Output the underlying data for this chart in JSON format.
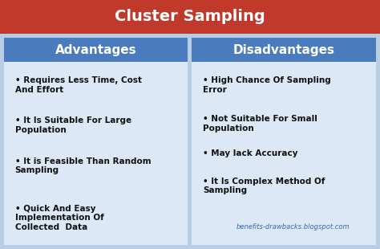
{
  "title": "Cluster Sampling",
  "title_bg_color": "#c0392b",
  "title_text_color": "#ffffff",
  "title_fontsize": 14,
  "header_bg_color": "#4a7bbf",
  "header_text_color": "#ffffff",
  "header_fontsize": 11,
  "body_bg_color": "#dce8f5",
  "body_text_color": "#111111",
  "outer_bg_color": "#b8cce4",
  "divider_color": "#b8cce4",
  "left_header": "Advantages",
  "right_header": "Disadvantages",
  "advantages": [
    "Requires Less Time, Cost\nAnd Effort",
    "It Is Suitable For Large\nPopulation",
    "It is Feasible Than Random\nSampling",
    "Quick And Easy\nImplementation Of\nCollected  Data"
  ],
  "disadvantages": [
    "High Chance Of Sampling\nError",
    "Not Suitable For Small\nPopulation",
    "May lack Accuracy",
    "It Is Complex Method Of\nSampling"
  ],
  "watermark": "benefits-drawbacks.blogspot.com",
  "watermark_color": "#3a6cb5",
  "body_fontsize": 7.5,
  "bullet": "•"
}
